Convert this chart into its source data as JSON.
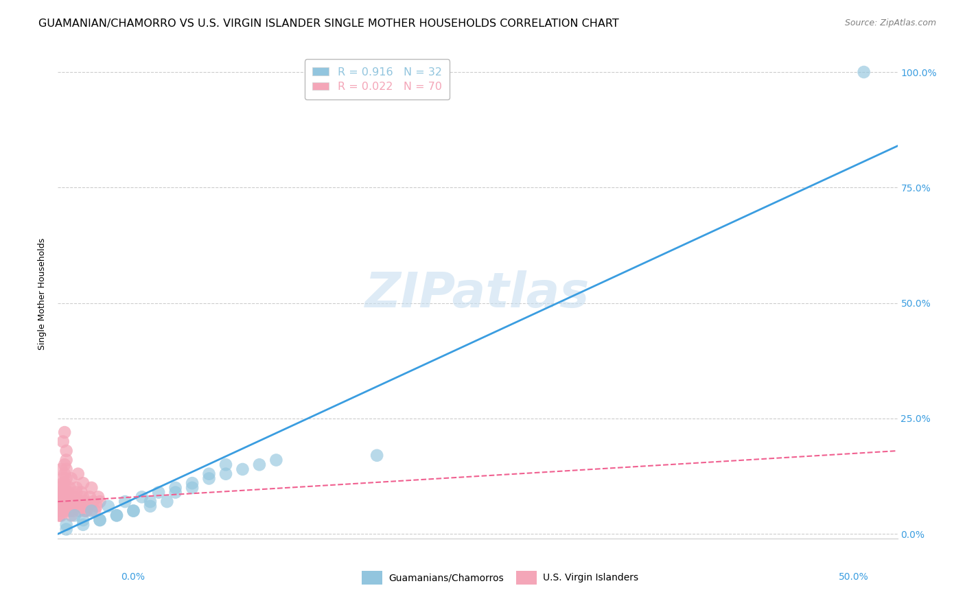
{
  "title": "GUAMANIAN/CHAMORRO VS U.S. VIRGIN ISLANDER SINGLE MOTHER HOUSEHOLDS CORRELATION CHART",
  "source": "Source: ZipAtlas.com",
  "ylabel": "Single Mother Households",
  "xlim": [
    0.0,
    0.5
  ],
  "ylim": [
    -0.01,
    1.05
  ],
  "blue_color": "#92c5de",
  "pink_color": "#f4a6b8",
  "blue_line_color": "#3a9de0",
  "pink_line_color": "#f06090",
  "tick_color": "#3a9de0",
  "watermark": "ZIPatlas",
  "legend_entries": [
    {
      "label": "Guamanians/Chamorros",
      "R": "0.916",
      "N": "32",
      "color": "#92c5de"
    },
    {
      "label": "U.S. Virgin Islanders",
      "R": "0.022",
      "N": "70",
      "color": "#f4a6b8"
    }
  ],
  "blue_scatter_x": [
    0.005,
    0.01,
    0.015,
    0.02,
    0.025,
    0.03,
    0.035,
    0.04,
    0.045,
    0.05,
    0.055,
    0.06,
    0.065,
    0.07,
    0.08,
    0.09,
    0.1,
    0.11,
    0.12,
    0.13,
    0.015,
    0.025,
    0.035,
    0.045,
    0.055,
    0.07,
    0.08,
    0.09,
    0.1,
    0.19,
    0.48,
    0.005
  ],
  "blue_scatter_y": [
    0.02,
    0.04,
    0.03,
    0.05,
    0.03,
    0.06,
    0.04,
    0.07,
    0.05,
    0.08,
    0.06,
    0.09,
    0.07,
    0.1,
    0.1,
    0.12,
    0.13,
    0.14,
    0.15,
    0.16,
    0.02,
    0.03,
    0.04,
    0.05,
    0.07,
    0.09,
    0.11,
    0.13,
    0.15,
    0.17,
    1.0,
    0.01
  ],
  "pink_scatter_x": [
    0.001,
    0.002,
    0.003,
    0.004,
    0.005,
    0.001,
    0.002,
    0.003,
    0.004,
    0.005,
    0.001,
    0.002,
    0.003,
    0.004,
    0.005,
    0.001,
    0.002,
    0.003,
    0.004,
    0.005,
    0.001,
    0.002,
    0.003,
    0.004,
    0.005,
    0.006,
    0.007,
    0.008,
    0.009,
    0.01,
    0.011,
    0.012,
    0.013,
    0.014,
    0.015,
    0.016,
    0.001,
    0.002,
    0.003,
    0.004,
    0.005,
    0.006,
    0.007,
    0.008,
    0.009,
    0.01,
    0.011,
    0.012,
    0.013,
    0.014,
    0.015,
    0.016,
    0.017,
    0.018,
    0.019,
    0.02,
    0.021,
    0.022,
    0.023,
    0.024,
    0.025,
    0.001,
    0.002,
    0.003,
    0.004,
    0.005,
    0.006,
    0.007,
    0.008,
    0.009
  ],
  "pink_scatter_y": [
    0.05,
    0.08,
    0.12,
    0.15,
    0.18,
    0.1,
    0.14,
    0.2,
    0.22,
    0.06,
    0.07,
    0.09,
    0.11,
    0.13,
    0.16,
    0.04,
    0.06,
    0.08,
    0.1,
    0.12,
    0.05,
    0.07,
    0.09,
    0.11,
    0.14,
    0.08,
    0.1,
    0.12,
    0.06,
    0.08,
    0.1,
    0.13,
    0.07,
    0.09,
    0.11,
    0.05,
    0.06,
    0.04,
    0.08,
    0.07,
    0.09,
    0.06,
    0.05,
    0.08,
    0.07,
    0.06,
    0.09,
    0.07,
    0.05,
    0.06,
    0.08,
    0.07,
    0.05,
    0.06,
    0.08,
    0.1,
    0.07,
    0.05,
    0.06,
    0.08,
    0.07,
    0.04,
    0.06,
    0.08,
    0.05,
    0.07,
    0.09,
    0.06,
    0.04,
    0.05
  ],
  "blue_trend_x": [
    0.0,
    0.5
  ],
  "blue_trend_y": [
    0.0,
    0.84
  ],
  "pink_trend_x": [
    0.0,
    0.5
  ],
  "pink_trend_y": [
    0.07,
    0.18
  ],
  "grid_color": "#cccccc",
  "background_color": "#ffffff",
  "title_fontsize": 11.5,
  "source_fontsize": 9,
  "ylabel_fontsize": 9,
  "tick_fontsize": 10,
  "watermark_fontsize": 52,
  "watermark_color": "#c8dff0",
  "watermark_alpha": 0.6
}
